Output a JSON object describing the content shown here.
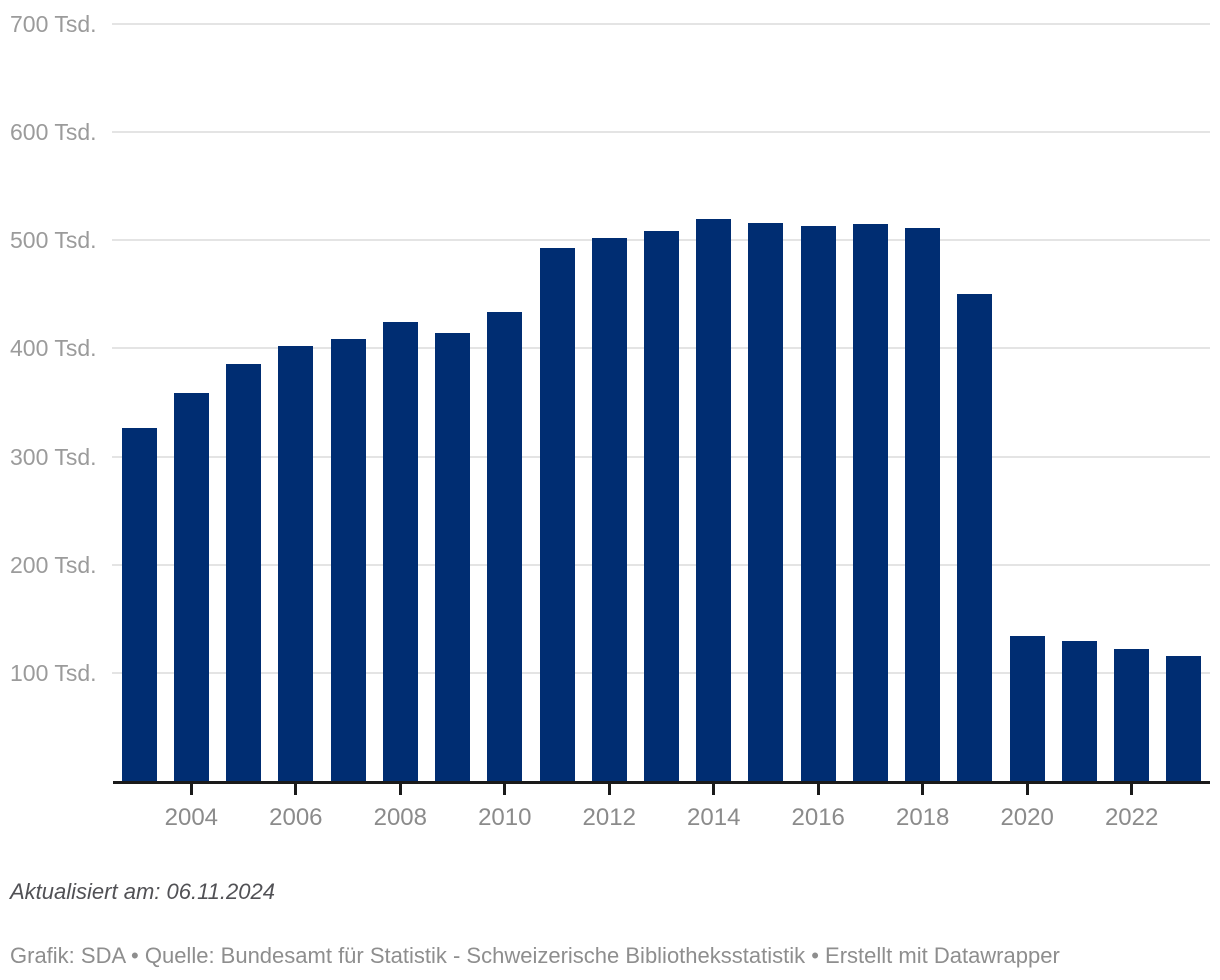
{
  "chart_data": {
    "type": "bar",
    "title": "",
    "categories": [
      2003,
      2004,
      2005,
      2006,
      2007,
      2008,
      2009,
      2010,
      2011,
      2012,
      2013,
      2014,
      2015,
      2016,
      2017,
      2018,
      2019,
      2020,
      2021,
      2022,
      2023
    ],
    "values": [
      326,
      359,
      386,
      402,
      409,
      424,
      414,
      434,
      493,
      502,
      509,
      520,
      516,
      513,
      515,
      511,
      450,
      134,
      129,
      122,
      116
    ],
    "unit": "Tsd.",
    "ylabel": "",
    "xlabel": "",
    "ylim": [
      0,
      700
    ],
    "y_ticks": [
      100,
      200,
      300,
      400,
      500,
      600,
      700
    ],
    "y_tick_labels": [
      "100 Tsd.",
      "200 Tsd.",
      "300 Tsd.",
      "400 Tsd.",
      "500 Tsd.",
      "600 Tsd.",
      "700 Tsd."
    ],
    "x_tick_labels": [
      "2004",
      "2006",
      "2008",
      "2010",
      "2012",
      "2014",
      "2016",
      "2018",
      "2020",
      "2022"
    ],
    "grid": "horizontal",
    "legend": "none",
    "bar_color": "#002d72"
  },
  "colors": {
    "bar": "#002d72",
    "gridline": "#e4e4e4",
    "axis": "#1a1a1a",
    "y_label": "#9b9b9b",
    "x_label": "#8b8b8b",
    "note_text": "#515155",
    "credit_text": "#8e8e8e",
    "background": "#ffffff"
  },
  "footer": {
    "updated": "Aktualisiert am: 06.11.2024",
    "credit": "Grafik: SDA • Quelle: Bundesamt für Statistik - Schweizerische Bibliotheksstatistik  • Erstellt mit Datawrapper"
  }
}
